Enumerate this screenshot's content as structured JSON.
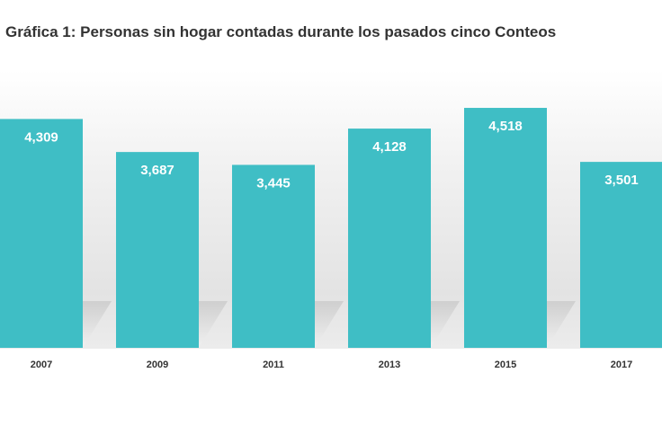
{
  "chart_data": {
    "type": "bar",
    "title": "Gráfica 1: Personas sin hogar contadas durante los pasados cinco Conteos",
    "categories": [
      "2007",
      "2009",
      "2011",
      "2013",
      "2015",
      "2017"
    ],
    "values": [
      4309,
      3687,
      3445,
      4128,
      4518,
      3501
    ],
    "value_labels": [
      "4,309",
      "3,687",
      "3,445",
      "4,128",
      "4,518",
      "3,501"
    ],
    "xlabel": "",
    "ylabel": "",
    "ylim": [
      0,
      5500
    ],
    "grid": false,
    "legend": "none",
    "colors": {
      "bar": "#3fbec5",
      "value_label": "#ffffff",
      "category_label": "#333333",
      "title": "#333333"
    }
  }
}
